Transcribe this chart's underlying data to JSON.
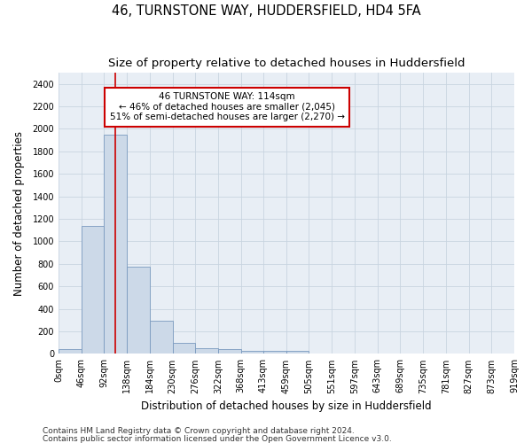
{
  "title": "46, TURNSTONE WAY, HUDDERSFIELD, HD4 5FA",
  "subtitle": "Size of property relative to detached houses in Huddersfield",
  "xlabel": "Distribution of detached houses by size in Huddersfield",
  "ylabel": "Number of detached properties",
  "bin_edges": [
    0,
    46,
    92,
    138,
    184,
    230,
    276,
    322,
    368,
    413,
    459,
    505,
    551,
    597,
    643,
    689,
    735,
    781,
    827,
    873,
    919
  ],
  "bin_labels": [
    "0sqm",
    "46sqm",
    "92sqm",
    "138sqm",
    "184sqm",
    "230sqm",
    "276sqm",
    "322sqm",
    "368sqm",
    "413sqm",
    "459sqm",
    "505sqm",
    "551sqm",
    "597sqm",
    "643sqm",
    "689sqm",
    "735sqm",
    "781sqm",
    "827sqm",
    "873sqm",
    "919sqm"
  ],
  "bar_heights": [
    40,
    1140,
    1950,
    775,
    295,
    100,
    50,
    40,
    25,
    25,
    25,
    0,
    0,
    0,
    0,
    0,
    0,
    0,
    0,
    0
  ],
  "bar_color": "#ccd9e8",
  "bar_edge_color": "#7a9abf",
  "property_line_x": 114,
  "property_line_color": "#cc0000",
  "annotation_line1": "46 TURNSTONE WAY: 114sqm",
  "annotation_line2": "← 46% of detached houses are smaller (2,045)",
  "annotation_line3": "51% of semi-detached houses are larger (2,270) →",
  "annotation_box_color": "#ffffff",
  "annotation_box_edge_color": "#cc0000",
  "ylim": [
    0,
    2500
  ],
  "yticks": [
    0,
    200,
    400,
    600,
    800,
    1000,
    1200,
    1400,
    1600,
    1800,
    2000,
    2200,
    2400
  ],
  "footnote1": "Contains HM Land Registry data © Crown copyright and database right 2024.",
  "footnote2": "Contains public sector information licensed under the Open Government Licence v3.0.",
  "bg_color": "#ffffff",
  "plot_bg_color": "#e8eef5",
  "grid_color": "#c8d4e0",
  "title_fontsize": 10.5,
  "subtitle_fontsize": 9.5,
  "axis_label_fontsize": 8.5,
  "tick_fontsize": 7,
  "annotation_fontsize": 7.5,
  "footnote_fontsize": 6.5
}
